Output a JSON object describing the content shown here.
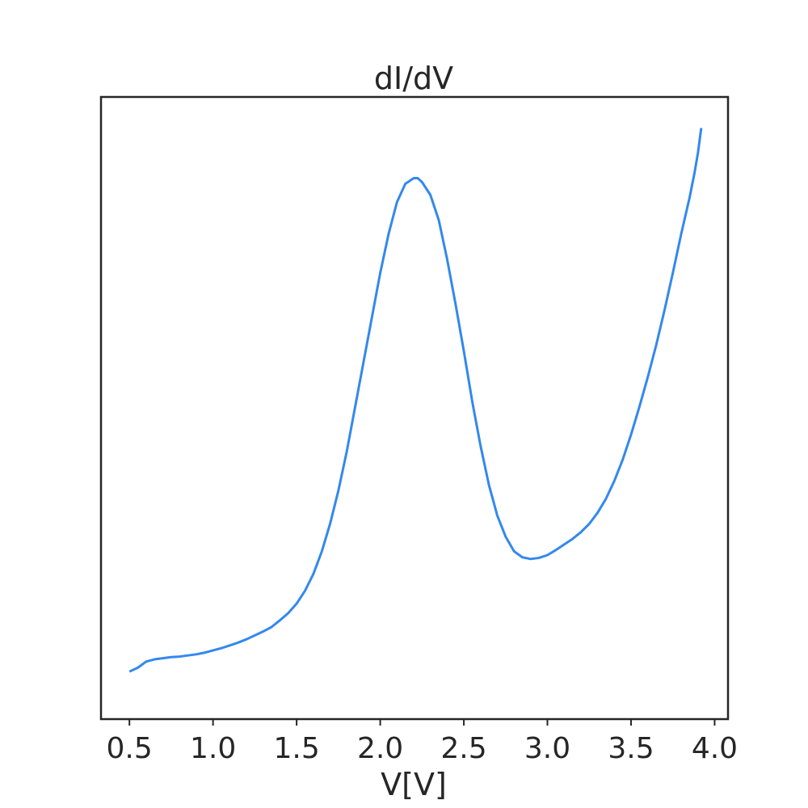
{
  "chart_data": {
    "type": "line",
    "title": "dI/dV",
    "xlabel": "V[V]",
    "ylabel": "",
    "xlim": [
      0.33,
      4.08
    ],
    "ylim": [
      0.0,
      1.0
    ],
    "x_ticks": [
      "0.5",
      "1.0",
      "1.5",
      "2.0",
      "2.5",
      "3.0",
      "3.5",
      "4.0"
    ],
    "y_ticks": [],
    "grid": false,
    "line_color": "#3388ee",
    "series": [
      {
        "x": [
          0.5,
          0.55,
          0.6,
          0.65,
          0.7,
          0.75,
          0.8,
          0.85,
          0.9,
          0.95,
          1.0,
          1.05,
          1.1,
          1.15,
          1.2,
          1.25,
          1.3,
          1.35,
          1.4,
          1.45,
          1.5,
          1.55,
          1.6,
          1.65,
          1.7,
          1.75,
          1.8,
          1.85,
          1.9,
          1.95,
          2.0,
          2.05,
          2.1,
          2.15,
          2.2,
          2.225,
          2.25,
          2.3,
          2.35,
          2.4,
          2.45,
          2.5,
          2.55,
          2.6,
          2.65,
          2.7,
          2.75,
          2.8,
          2.85,
          2.9,
          2.95,
          3.0,
          3.05,
          3.1,
          3.15,
          3.2,
          3.25,
          3.3,
          3.35,
          3.4,
          3.45,
          3.5,
          3.55,
          3.6,
          3.65,
          3.7,
          3.75,
          3.8,
          3.85,
          3.88,
          3.9,
          3.92
        ],
        "y": [
          0.02,
          0.027,
          0.038,
          0.042,
          0.044,
          0.046,
          0.047,
          0.049,
          0.051,
          0.054,
          0.058,
          0.062,
          0.067,
          0.072,
          0.078,
          0.085,
          0.092,
          0.1,
          0.112,
          0.125,
          0.142,
          0.165,
          0.195,
          0.235,
          0.285,
          0.345,
          0.415,
          0.495,
          0.575,
          0.655,
          0.735,
          0.805,
          0.862,
          0.895,
          0.905,
          0.905,
          0.898,
          0.875,
          0.83,
          0.76,
          0.68,
          0.595,
          0.505,
          0.425,
          0.355,
          0.3,
          0.262,
          0.236,
          0.225,
          0.222,
          0.224,
          0.229,
          0.238,
          0.248,
          0.258,
          0.27,
          0.285,
          0.305,
          0.33,
          0.362,
          0.4,
          0.445,
          0.495,
          0.548,
          0.605,
          0.668,
          0.735,
          0.805,
          0.87,
          0.915,
          0.95,
          0.995
        ]
      }
    ]
  }
}
